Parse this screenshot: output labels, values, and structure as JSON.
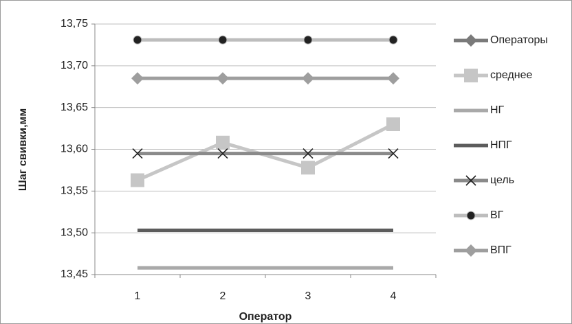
{
  "chart_data": {
    "type": "line",
    "y_label": "Шаг свивки,мм",
    "x_label": "Оператор",
    "categories": [
      "1",
      "2",
      "3",
      "4"
    ],
    "ylim": [
      13.45,
      13.75
    ],
    "yticks": [
      {
        "value": 13.45,
        "label": "13,45"
      },
      {
        "value": 13.5,
        "label": "13,50"
      },
      {
        "value": 13.55,
        "label": "13,55"
      },
      {
        "value": 13.6,
        "label": "13,60"
      },
      {
        "value": 13.65,
        "label": "13,65"
      },
      {
        "value": 13.7,
        "label": "13,70"
      },
      {
        "value": 13.75,
        "label": "13,75"
      }
    ],
    "grid": true,
    "legend": "right",
    "series": [
      {
        "name": "Операторы",
        "color": "#7a7a7a",
        "marker": "diamond",
        "marker_color": "#7a7a7a",
        "values": [
          null,
          null,
          null,
          null
        ]
      },
      {
        "name": "среднее",
        "color": "#c6c6c6",
        "marker": "square",
        "marker_color": "#c6c6c6",
        "values": [
          13.563,
          13.608,
          13.578,
          13.63
        ]
      },
      {
        "name": "НГ",
        "color": "#a9a9a9",
        "marker": "none",
        "marker_color": "#a9a9a9",
        "values": [
          13.458,
          13.458,
          13.458,
          13.458
        ]
      },
      {
        "name": "НПГ",
        "color": "#5c5c5c",
        "marker": "none",
        "marker_color": "#5c5c5c",
        "values": [
          13.503,
          13.503,
          13.503,
          13.503
        ]
      },
      {
        "name": "цель",
        "color": "#8a8a8a",
        "marker": "x",
        "marker_color": "#222222",
        "values": [
          13.595,
          13.595,
          13.595,
          13.595
        ]
      },
      {
        "name": "ВГ",
        "color": "#bdbdbd",
        "marker": "circle",
        "marker_color": "#222222",
        "values": [
          13.731,
          13.731,
          13.731,
          13.731
        ]
      },
      {
        "name": "ВПГ",
        "color": "#9e9e9e",
        "marker": "diamond",
        "marker_color": "#9e9e9e",
        "values": [
          13.685,
          13.685,
          13.685,
          13.685
        ]
      }
    ]
  }
}
